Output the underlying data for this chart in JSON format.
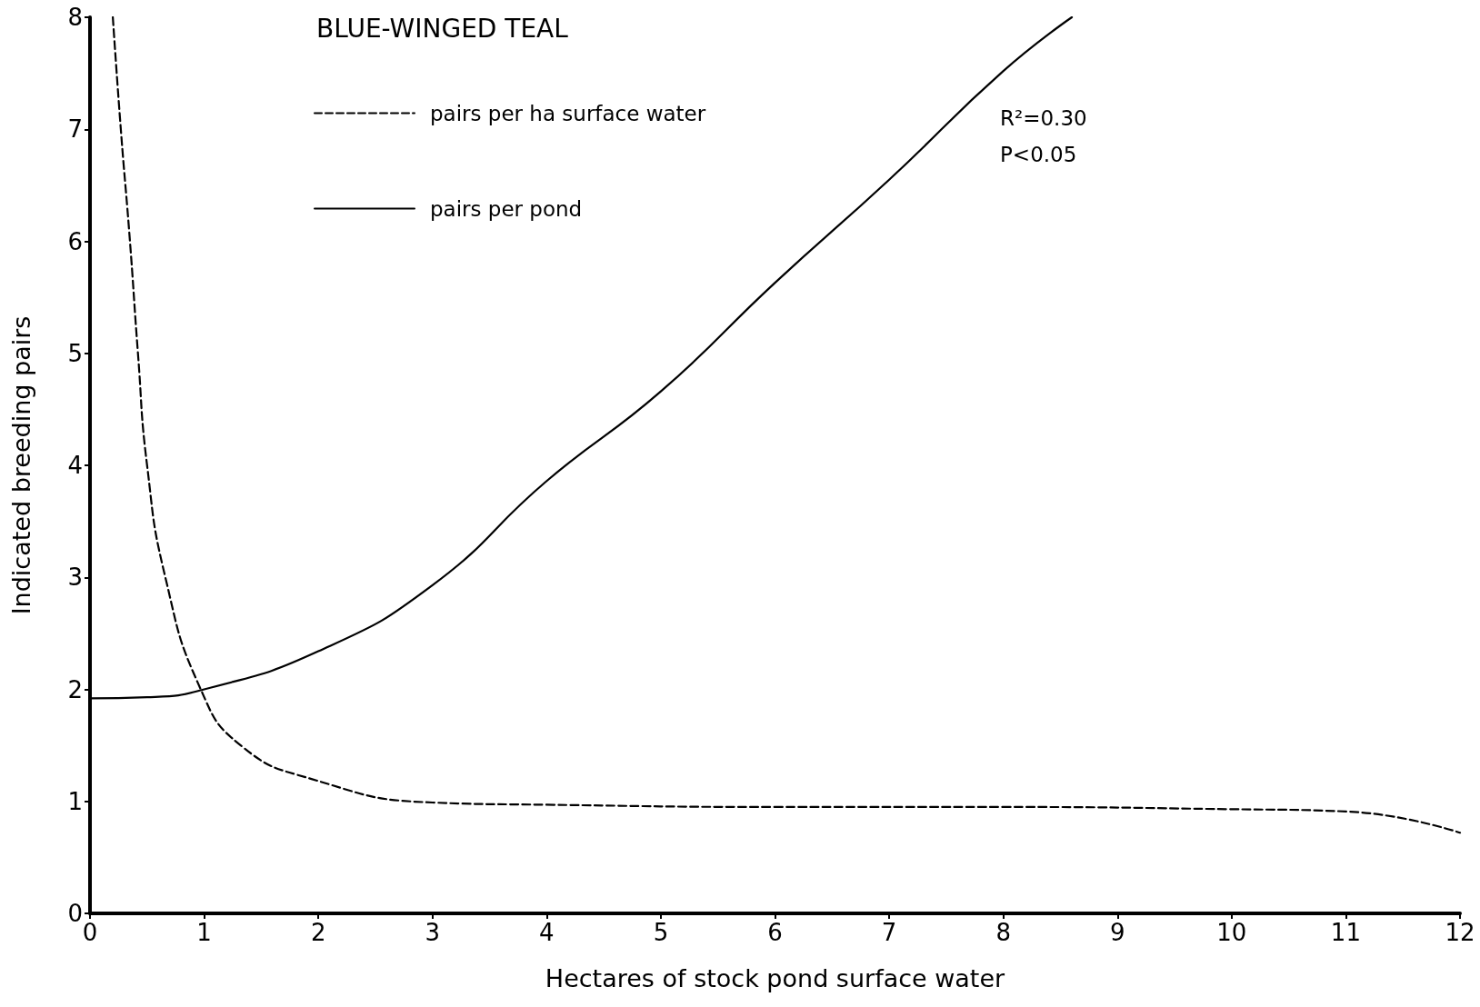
{
  "chart_data": {
    "type": "line",
    "title": "BLUE-WINGED TEAL",
    "xlabel": "Hectares of stock pond surface water",
    "ylabel": "Indicated breeding pairs",
    "xlim": [
      0,
      12
    ],
    "xticks": [
      0,
      1,
      2,
      3,
      4,
      5,
      6,
      7,
      8,
      9,
      10,
      11,
      12
    ],
    "ylim": [
      0,
      8
    ],
    "yticks": [
      0,
      1,
      2,
      3,
      4,
      5,
      6,
      7,
      8
    ],
    "grid": false,
    "legend": "top left",
    "marker": "none",
    "annotations": [
      "R²=0.30",
      "P<0.05"
    ],
    "series": [
      {
        "name": "pairs per ha surface water",
        "color": "#000000",
        "line_style": "dashed",
        "x": [
          0.2,
          0.27,
          0.35,
          0.42,
          0.5,
          0.66,
          0.97,
          1.32,
          1.94,
          3,
          4,
          6,
          8,
          10,
          11,
          12
        ],
        "values": [
          8,
          7,
          6,
          5,
          4,
          3,
          2,
          1.5,
          1.2,
          0.99,
          0.97,
          0.95,
          0.95,
          0.93,
          0.91,
          0.72
        ]
      },
      {
        "name": "pairs per pond",
        "color": "#000000",
        "line_style": "solid",
        "x": [
          0,
          0.5,
          1,
          2,
          3,
          4,
          5,
          6,
          7,
          8,
          8.6
        ],
        "values": [
          1.92,
          1.93,
          2.0,
          2.34,
          2.93,
          3.86,
          4.66,
          5.63,
          6.55,
          7.52,
          8
        ]
      }
    ]
  }
}
